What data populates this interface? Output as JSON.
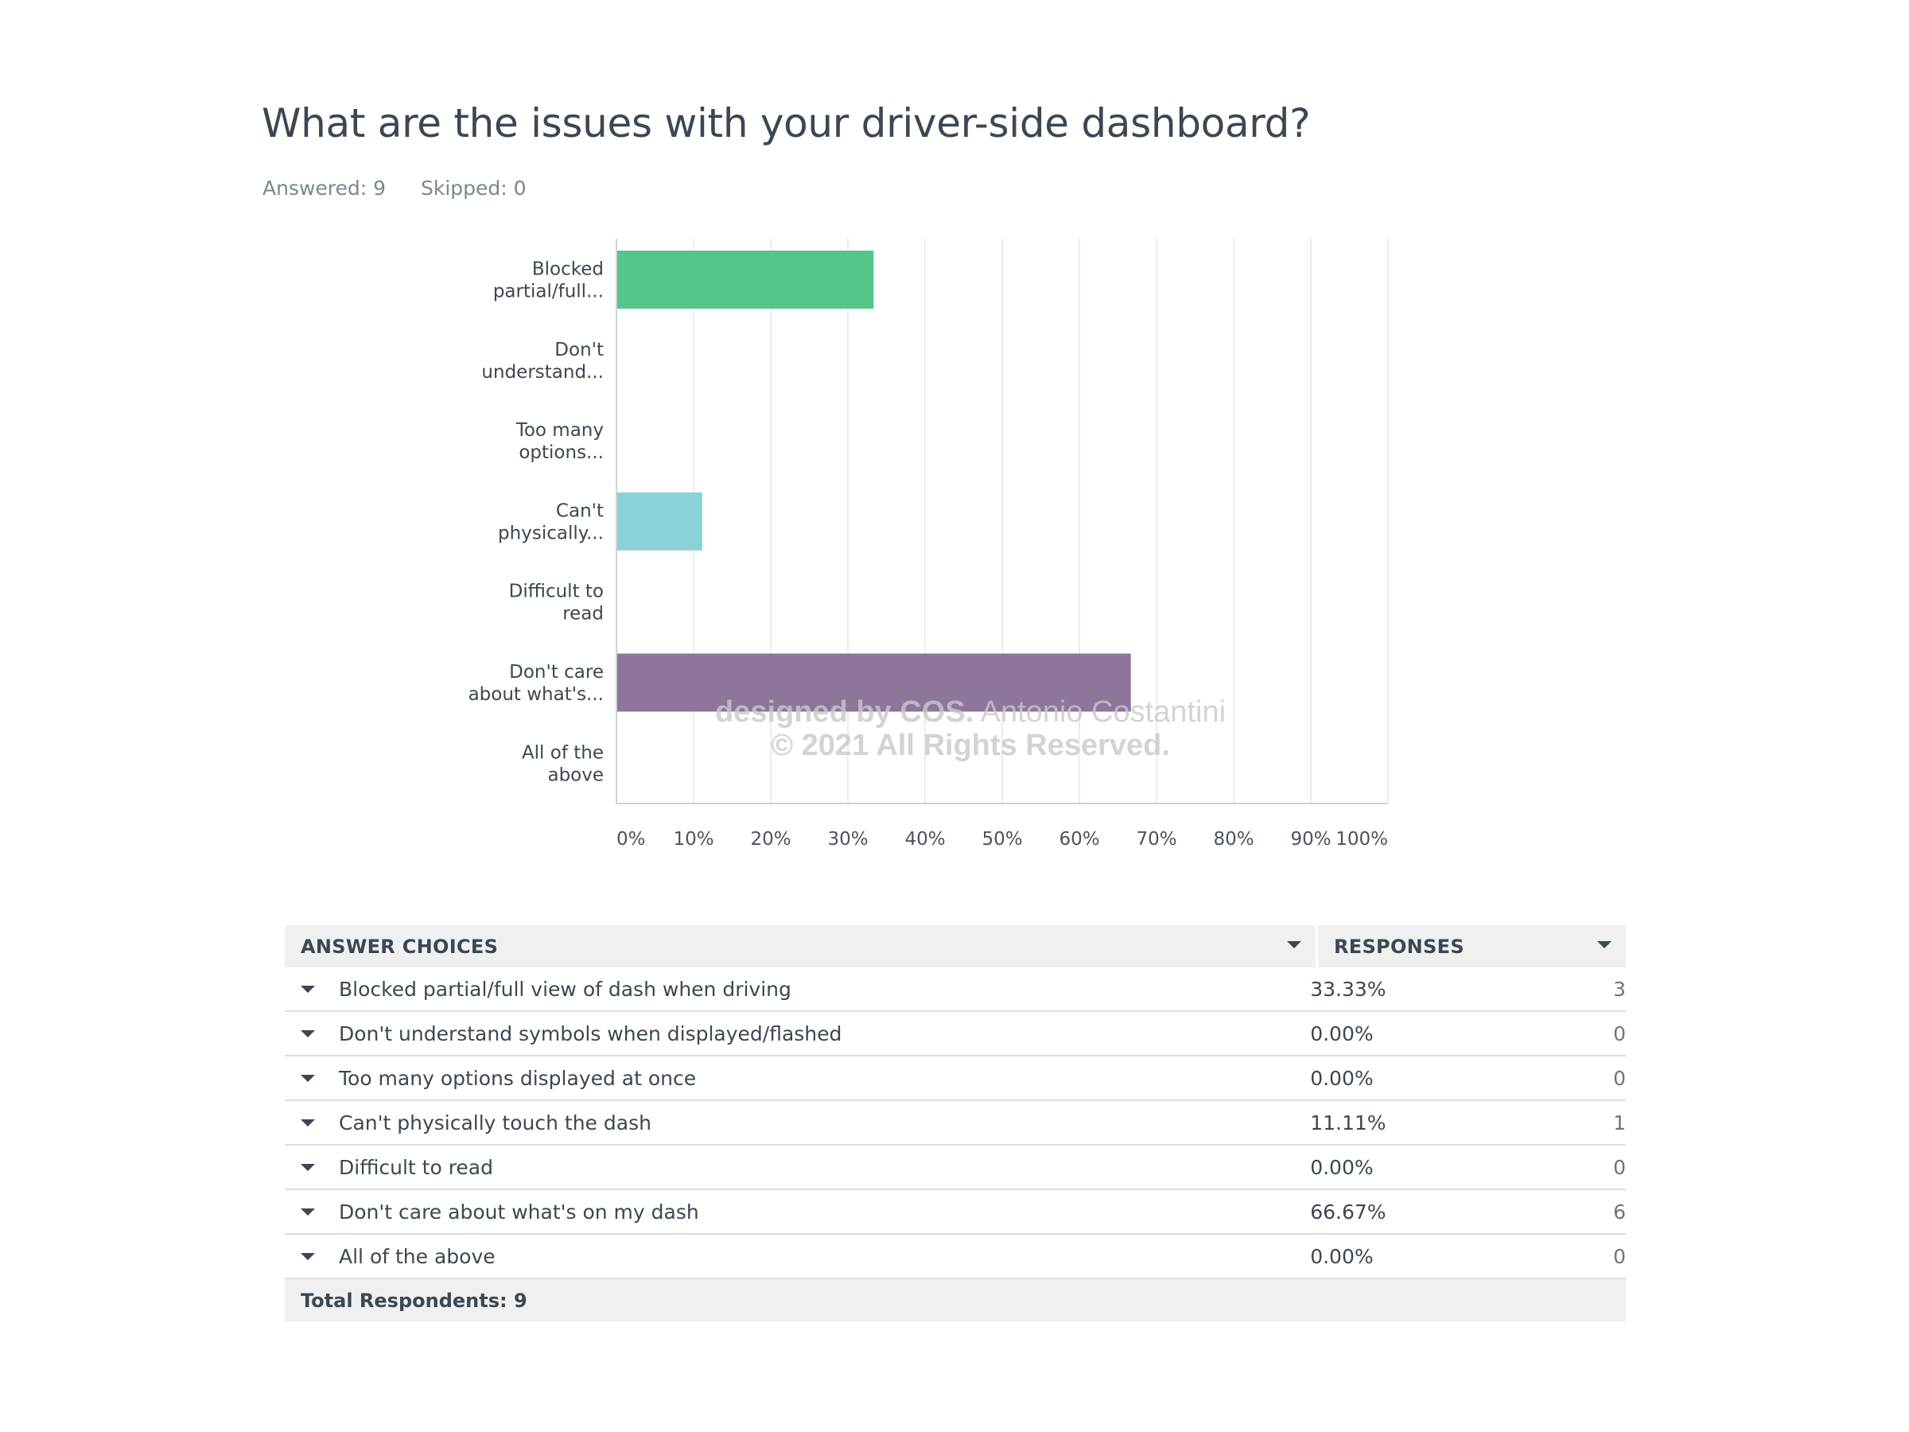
{
  "question": {
    "title": "What are the issues with your driver-side dashboard?",
    "answered": "Answered: 9",
    "skipped": "Skipped: 0"
  },
  "chart_data": {
    "type": "bar",
    "orientation": "horizontal",
    "categories": [
      [
        "Blocked",
        "partial/full..."
      ],
      [
        "Don't",
        "understand..."
      ],
      [
        "Too many",
        "options..."
      ],
      [
        "Can't",
        "physically..."
      ],
      [
        "Difficult to",
        "read"
      ],
      [
        "Don't care",
        "about what's..."
      ],
      [
        "All of the",
        "above"
      ]
    ],
    "values": [
      33.33,
      0,
      0,
      11.11,
      0,
      66.67,
      0
    ],
    "colors": [
      "#55c68b",
      "#55c68b",
      "#55c68b",
      "#8ad2d8",
      "#8ad2d8",
      "#8e759c",
      "#8e759c"
    ],
    "xlim": [
      0,
      100
    ],
    "x_ticks": [
      "0%",
      "10%",
      "20%",
      "30%",
      "40%",
      "50%",
      "60%",
      "70%",
      "80%",
      "90%",
      "100%"
    ],
    "grid": true,
    "watermark": {
      "line1_bold": "designed by COS.",
      "line1_rest": " Antonio Costantini",
      "line2": "© 2021 All Rights Reserved."
    }
  },
  "table": {
    "headers": {
      "choices": "ANSWER CHOICES",
      "responses": "RESPONSES"
    },
    "rows": [
      {
        "choice": "Blocked partial/full view of dash when driving",
        "percent": "33.33%",
        "count": "3"
      },
      {
        "choice": "Don't understand symbols when displayed/flashed",
        "percent": "0.00%",
        "count": "0"
      },
      {
        "choice": "Too many options displayed at once",
        "percent": "0.00%",
        "count": "0"
      },
      {
        "choice": "Can't physically touch the dash",
        "percent": "11.11%",
        "count": "1"
      },
      {
        "choice": "Difficult to read",
        "percent": "0.00%",
        "count": "0"
      },
      {
        "choice": "Don't care about what's on my dash",
        "percent": "66.67%",
        "count": "6"
      },
      {
        "choice": "All of the above",
        "percent": "0.00%",
        "count": "0"
      }
    ],
    "total": "Total Respondents: 9"
  }
}
